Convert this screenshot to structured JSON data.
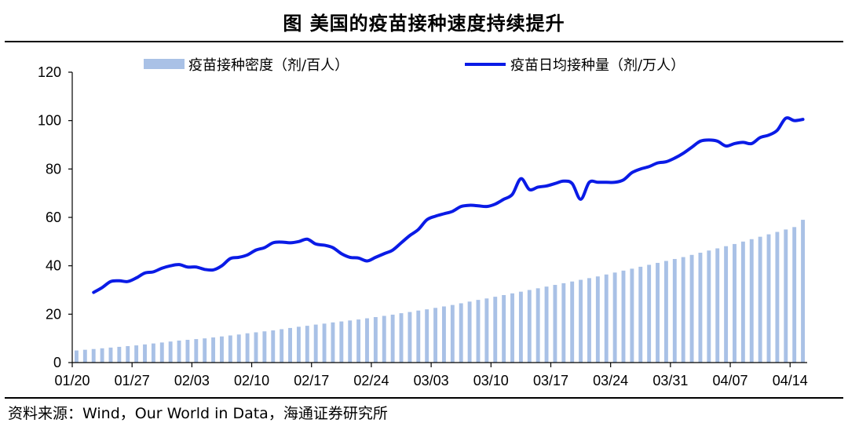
{
  "title": "图  美国的疫苗接种速度持续提升",
  "source": "资料来源：Wind，Our World in Data，海通证券研究所",
  "colors": {
    "bars": "#a9c1e6",
    "line": "#0a1be6",
    "axis": "#000000"
  },
  "chart_data": {
    "type": "bar+line",
    "ylim": [
      0,
      120
    ],
    "yticks": [
      0,
      20,
      40,
      60,
      80,
      100,
      120
    ],
    "xtick_labels": [
      "01/20",
      "01/27",
      "02/03",
      "02/10",
      "02/17",
      "02/24",
      "03/03",
      "03/10",
      "03/17",
      "03/24",
      "03/31",
      "04/07",
      "04/14"
    ],
    "legend_placement": "top",
    "series": [
      {
        "name": "疫苗接种密度（剂/百人）",
        "type": "bar",
        "x": [
          "01/20",
          "01/21",
          "01/22",
          "01/23",
          "01/24",
          "01/25",
          "01/26",
          "01/27",
          "01/28",
          "01/29",
          "01/30",
          "01/31",
          "02/01",
          "02/02",
          "02/03",
          "02/04",
          "02/05",
          "02/06",
          "02/07",
          "02/08",
          "02/09",
          "02/10",
          "02/11",
          "02/12",
          "02/13",
          "02/14",
          "02/15",
          "02/16",
          "02/17",
          "02/18",
          "02/19",
          "02/20",
          "02/21",
          "02/22",
          "02/23",
          "02/24",
          "02/25",
          "02/26",
          "02/27",
          "02/28",
          "03/01",
          "03/02",
          "03/03",
          "03/04",
          "03/05",
          "03/06",
          "03/07",
          "03/08",
          "03/09",
          "03/10",
          "03/11",
          "03/12",
          "03/13",
          "03/14",
          "03/15",
          "03/16",
          "03/17",
          "03/18",
          "03/19",
          "03/20",
          "03/21",
          "03/22",
          "03/23",
          "03/24",
          "03/25",
          "03/26",
          "03/27",
          "03/28",
          "03/29",
          "03/30",
          "03/31",
          "04/01",
          "04/02",
          "04/03",
          "04/04",
          "04/05",
          "04/06",
          "04/07",
          "04/08",
          "04/09",
          "04/10",
          "04/11",
          "04/12",
          "04/13",
          "04/14",
          "04/15"
        ],
        "values": [
          5.0,
          5.3,
          5.6,
          5.9,
          6.2,
          6.5,
          6.8,
          7.1,
          7.5,
          7.9,
          8.3,
          8.7,
          9.1,
          9.4,
          9.7,
          10.0,
          10.4,
          10.8,
          11.2,
          11.6,
          12.1,
          12.5,
          12.9,
          13.3,
          13.8,
          14.3,
          14.8,
          15.2,
          15.7,
          16.1,
          16.6,
          17.0,
          17.4,
          17.8,
          18.3,
          18.8,
          19.3,
          19.8,
          20.4,
          20.9,
          21.5,
          22.0,
          22.6,
          23.2,
          23.8,
          24.5,
          25.2,
          25.9,
          26.5,
          27.2,
          27.9,
          28.6,
          29.3,
          30.0,
          30.7,
          31.4,
          32.1,
          32.8,
          33.5,
          34.2,
          34.9,
          35.6,
          36.4,
          37.2,
          38.0,
          38.8,
          39.6,
          40.4,
          41.2,
          42.0,
          42.8,
          43.6,
          44.5,
          45.4,
          46.3,
          47.2,
          48.1,
          49.0,
          50.0,
          51.0,
          52.0,
          53.0,
          54.0,
          55.0,
          56.0,
          59.0
        ]
      },
      {
        "name": "疫苗日均接种量（剂/万人）",
        "type": "line",
        "x": [
          "01/22",
          "01/23",
          "01/24",
          "01/25",
          "01/26",
          "01/27",
          "01/28",
          "01/29",
          "01/30",
          "01/31",
          "02/01",
          "02/02",
          "02/03",
          "02/04",
          "02/05",
          "02/06",
          "02/07",
          "02/08",
          "02/09",
          "02/10",
          "02/11",
          "02/12",
          "02/13",
          "02/14",
          "02/15",
          "02/16",
          "02/17",
          "02/18",
          "02/19",
          "02/20",
          "02/21",
          "02/22",
          "02/23",
          "02/24",
          "02/25",
          "02/26",
          "02/27",
          "02/28",
          "03/01",
          "03/02",
          "03/03",
          "03/04",
          "03/05",
          "03/06",
          "03/07",
          "03/08",
          "03/09",
          "03/10",
          "03/11",
          "03/12",
          "03/13",
          "03/14",
          "03/15",
          "03/16",
          "03/17",
          "03/18",
          "03/19",
          "03/20",
          "03/21",
          "03/22",
          "03/23",
          "03/24",
          "03/25",
          "03/26",
          "03/27",
          "03/28",
          "03/29",
          "03/30",
          "03/31",
          "04/01",
          "04/02",
          "04/03",
          "04/04",
          "04/05",
          "04/06",
          "04/07",
          "04/08",
          "04/09",
          "04/10",
          "04/11",
          "04/12",
          "04/13",
          "04/14",
          "04/15"
        ],
        "values": [
          29,
          31,
          33.5,
          33.8,
          33.5,
          35,
          37,
          37.5,
          39,
          40,
          40.5,
          39.5,
          39.5,
          38.5,
          38.3,
          40,
          43,
          43.5,
          44.5,
          46.5,
          47.5,
          49.5,
          49.8,
          49.5,
          50,
          51,
          49,
          48.5,
          47.5,
          45,
          43.5,
          43.2,
          42,
          43.5,
          45,
          46.5,
          49.5,
          52.5,
          55,
          59,
          60.5,
          61.5,
          62.5,
          64.5,
          65,
          64.8,
          64.5,
          65.5,
          67.5,
          69.5,
          76,
          71.5,
          72.5,
          73,
          74,
          75,
          74,
          67.5,
          74.5,
          74.5,
          74.5,
          74.5,
          75.5,
          78.5,
          80,
          81,
          82.5,
          83,
          84.5,
          86.5,
          89,
          91.5,
          92,
          91.5,
          89.5,
          90.5,
          91,
          90.5,
          93,
          94,
          96,
          101,
          100,
          100.5
        ]
      }
    ]
  }
}
